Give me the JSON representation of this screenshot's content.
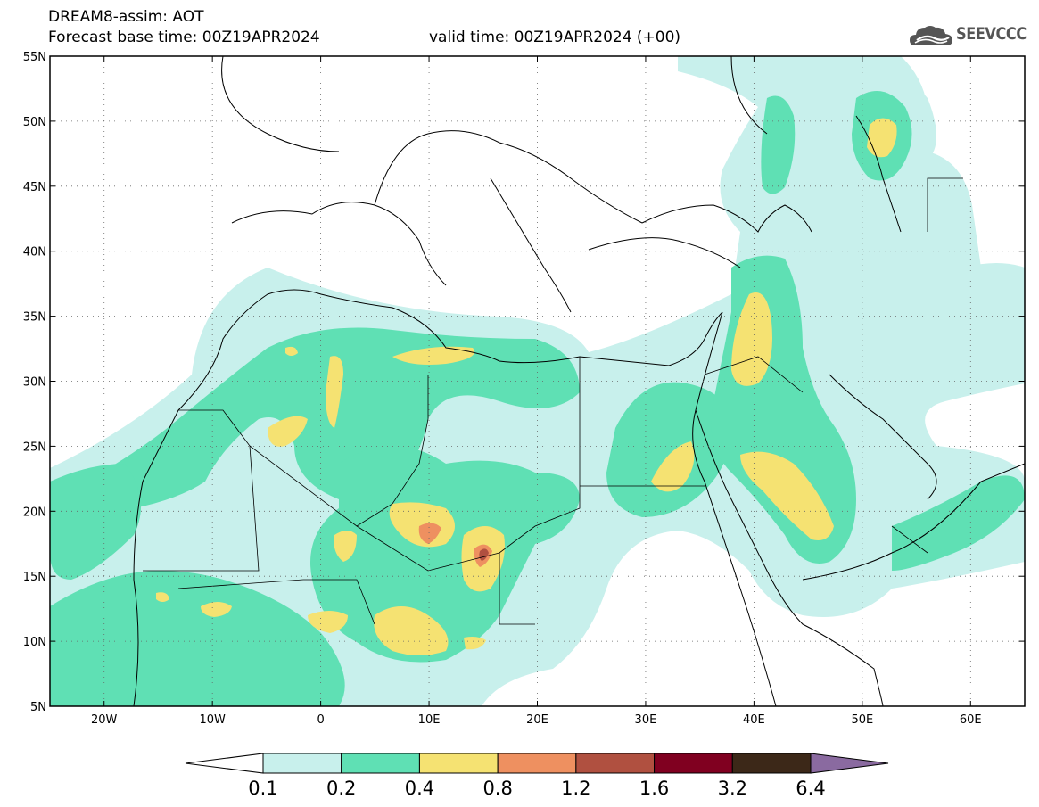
{
  "header": {
    "title": "DREAM8-assim: AOT",
    "base_time": "Forecast base time: 00Z19APR2024",
    "valid_time": "valid time: 00Z19APR2024 (+00)",
    "logo_text": "SEEVCCC"
  },
  "map": {
    "lon_range": [
      -25,
      65
    ],
    "lat_range": [
      5,
      55
    ],
    "lat_labels": [
      "55N",
      "50N",
      "45N",
      "40N",
      "35N",
      "30N",
      "25N",
      "20N",
      "15N",
      "10N",
      "5N"
    ],
    "lon_labels": [
      "20W",
      "10W",
      "0",
      "10E",
      "20E",
      "30E",
      "40E",
      "50E",
      "60E"
    ],
    "grid": "dotted"
  },
  "legend": {
    "levels": [
      "0.1",
      "0.2",
      "0.4",
      "0.8",
      "1.2",
      "1.6",
      "3.2",
      "6.4"
    ],
    "colors": [
      "#ffffff",
      "#c8f0ec",
      "#5fe0b4",
      "#f5e272",
      "#ee9060",
      "#b05040",
      "#800020",
      "#3c2818",
      "#8a6aa0"
    ]
  },
  "colors": {
    "c1": "#c8f0ec",
    "c2": "#5fe0b4",
    "c3": "#f5e272",
    "c4": "#ee9060",
    "c5": "#b05040"
  }
}
